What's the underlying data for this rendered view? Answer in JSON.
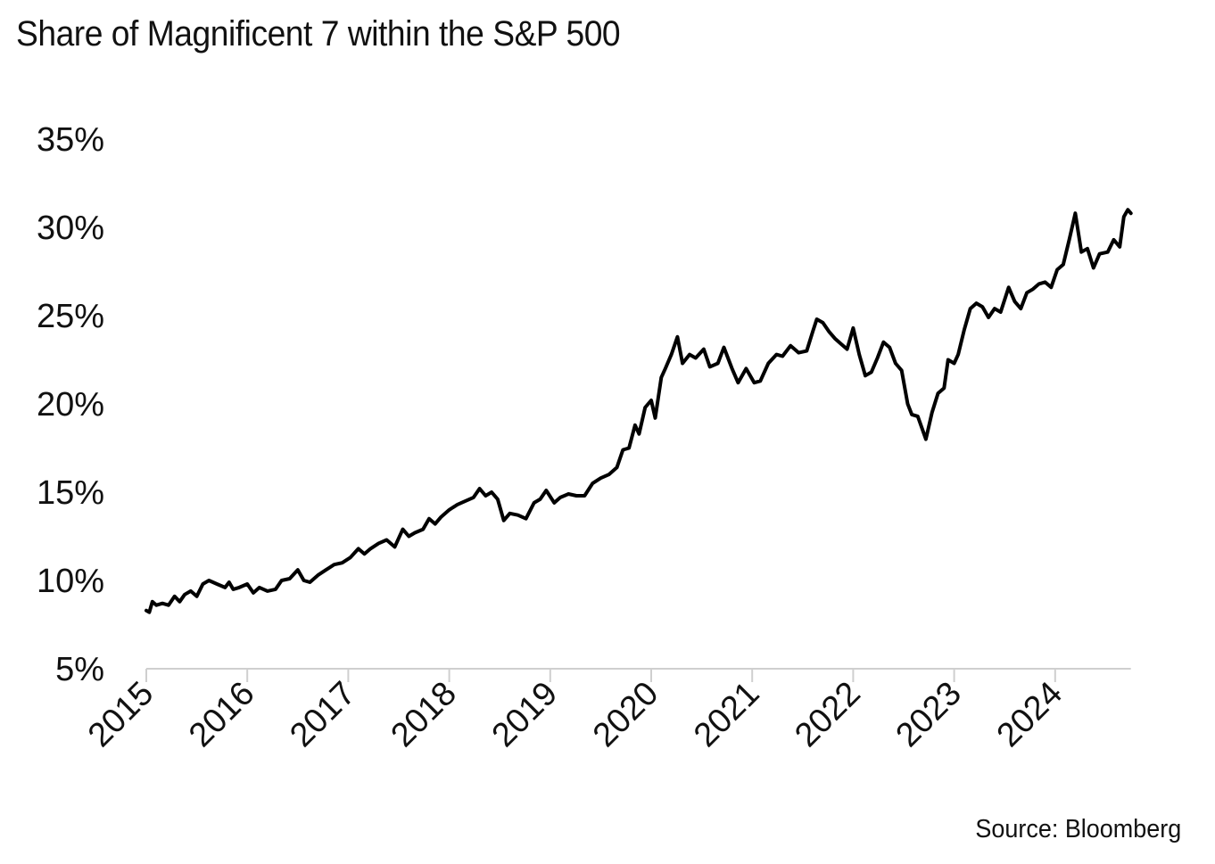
{
  "chart_data": {
    "type": "line",
    "title": "Share of Magnificent 7 within the S&P 500",
    "source": "Source: Bloomberg",
    "xlabel": "",
    "ylabel": "",
    "xlim": [
      2015,
      2024.75
    ],
    "ylim": [
      5,
      35
    ],
    "y_ticks": [
      5,
      10,
      15,
      20,
      25,
      30,
      35
    ],
    "y_tick_labels": [
      "5%",
      "10%",
      "15%",
      "20%",
      "25%",
      "30%",
      "35%"
    ],
    "x_ticks": [
      2015,
      2016,
      2017,
      2018,
      2019,
      2020,
      2021,
      2022,
      2023,
      2024
    ],
    "x_tick_labels": [
      "2015",
      "2016",
      "2017",
      "2018",
      "2019",
      "2020",
      "2021",
      "2022",
      "2023",
      "2024"
    ],
    "grid": false,
    "legend": "none",
    "series": [
      {
        "name": "Magnificent 7 share of S&P 500",
        "color": "#000000",
        "points": [
          [
            2015.0,
            8.3
          ],
          [
            2015.03,
            8.2
          ],
          [
            2015.06,
            8.8
          ],
          [
            2015.1,
            8.6
          ],
          [
            2015.16,
            8.7
          ],
          [
            2015.22,
            8.6
          ],
          [
            2015.28,
            9.1
          ],
          [
            2015.33,
            8.8
          ],
          [
            2015.38,
            9.2
          ],
          [
            2015.44,
            9.4
          ],
          [
            2015.5,
            9.1
          ],
          [
            2015.56,
            9.8
          ],
          [
            2015.62,
            10.0
          ],
          [
            2015.7,
            9.8
          ],
          [
            2015.78,
            9.6
          ],
          [
            2015.82,
            9.9
          ],
          [
            2015.86,
            9.5
          ],
          [
            2015.92,
            9.6
          ],
          [
            2016.0,
            9.8
          ],
          [
            2016.06,
            9.3
          ],
          [
            2016.12,
            9.6
          ],
          [
            2016.2,
            9.4
          ],
          [
            2016.28,
            9.5
          ],
          [
            2016.34,
            10.0
          ],
          [
            2016.42,
            10.1
          ],
          [
            2016.5,
            10.6
          ],
          [
            2016.56,
            10.0
          ],
          [
            2016.62,
            9.9
          ],
          [
            2016.7,
            10.3
          ],
          [
            2016.78,
            10.6
          ],
          [
            2016.86,
            10.9
          ],
          [
            2016.94,
            11.0
          ],
          [
            2017.02,
            11.3
          ],
          [
            2017.1,
            11.8
          ],
          [
            2017.16,
            11.5
          ],
          [
            2017.22,
            11.8
          ],
          [
            2017.3,
            12.1
          ],
          [
            2017.38,
            12.3
          ],
          [
            2017.46,
            11.9
          ],
          [
            2017.54,
            12.9
          ],
          [
            2017.6,
            12.5
          ],
          [
            2017.66,
            12.7
          ],
          [
            2017.74,
            12.9
          ],
          [
            2017.8,
            13.5
          ],
          [
            2017.86,
            13.2
          ],
          [
            2017.92,
            13.6
          ],
          [
            2018.0,
            14.0
          ],
          [
            2018.08,
            14.3
          ],
          [
            2018.16,
            14.5
          ],
          [
            2018.24,
            14.7
          ],
          [
            2018.3,
            15.2
          ],
          [
            2018.36,
            14.8
          ],
          [
            2018.42,
            15.0
          ],
          [
            2018.48,
            14.6
          ],
          [
            2018.54,
            13.4
          ],
          [
            2018.6,
            13.8
          ],
          [
            2018.68,
            13.7
          ],
          [
            2018.76,
            13.5
          ],
          [
            2018.84,
            14.4
          ],
          [
            2018.9,
            14.6
          ],
          [
            2018.96,
            15.1
          ],
          [
            2019.04,
            14.4
          ],
          [
            2019.1,
            14.7
          ],
          [
            2019.18,
            14.9
          ],
          [
            2019.26,
            14.8
          ],
          [
            2019.34,
            14.8
          ],
          [
            2019.42,
            15.5
          ],
          [
            2019.5,
            15.8
          ],
          [
            2019.58,
            16.0
          ],
          [
            2019.66,
            16.4
          ],
          [
            2019.72,
            17.4
          ],
          [
            2019.78,
            17.5
          ],
          [
            2019.84,
            18.8
          ],
          [
            2019.88,
            18.3
          ],
          [
            2019.94,
            19.8
          ],
          [
            2020.0,
            20.2
          ],
          [
            2020.04,
            19.2
          ],
          [
            2020.1,
            21.5
          ],
          [
            2020.14,
            22.0
          ],
          [
            2020.2,
            22.8
          ],
          [
            2020.26,
            23.8
          ],
          [
            2020.31,
            22.3
          ],
          [
            2020.38,
            22.8
          ],
          [
            2020.44,
            22.6
          ],
          [
            2020.52,
            23.1
          ],
          [
            2020.58,
            22.1
          ],
          [
            2020.66,
            22.3
          ],
          [
            2020.72,
            23.2
          ],
          [
            2020.8,
            22.0
          ],
          [
            2020.86,
            21.2
          ],
          [
            2020.94,
            22.0
          ],
          [
            2021.02,
            21.2
          ],
          [
            2021.08,
            21.3
          ],
          [
            2021.16,
            22.3
          ],
          [
            2021.24,
            22.8
          ],
          [
            2021.3,
            22.7
          ],
          [
            2021.38,
            23.3
          ],
          [
            2021.46,
            22.9
          ],
          [
            2021.54,
            23.0
          ],
          [
            2021.6,
            24.1
          ],
          [
            2021.64,
            24.8
          ],
          [
            2021.7,
            24.6
          ],
          [
            2021.76,
            24.1
          ],
          [
            2021.82,
            23.7
          ],
          [
            2021.88,
            23.4
          ],
          [
            2021.94,
            23.1
          ],
          [
            2022.0,
            24.3
          ],
          [
            2022.06,
            22.8
          ],
          [
            2022.12,
            21.6
          ],
          [
            2022.18,
            21.8
          ],
          [
            2022.24,
            22.6
          ],
          [
            2022.3,
            23.5
          ],
          [
            2022.36,
            23.2
          ],
          [
            2022.42,
            22.3
          ],
          [
            2022.48,
            21.9
          ],
          [
            2022.54,
            20.0
          ],
          [
            2022.58,
            19.4
          ],
          [
            2022.64,
            19.3
          ],
          [
            2022.72,
            18.0
          ],
          [
            2022.78,
            19.5
          ],
          [
            2022.84,
            20.6
          ],
          [
            2022.9,
            20.9
          ],
          [
            2022.94,
            22.5
          ],
          [
            2023.0,
            22.3
          ],
          [
            2023.04,
            22.8
          ],
          [
            2023.1,
            24.2
          ],
          [
            2023.16,
            25.4
          ],
          [
            2023.22,
            25.7
          ],
          [
            2023.28,
            25.5
          ],
          [
            2023.34,
            24.9
          ],
          [
            2023.4,
            25.4
          ],
          [
            2023.46,
            25.2
          ],
          [
            2023.54,
            26.6
          ],
          [
            2023.6,
            25.8
          ],
          [
            2023.66,
            25.4
          ],
          [
            2023.72,
            26.3
          ],
          [
            2023.78,
            26.5
          ],
          [
            2023.84,
            26.8
          ],
          [
            2023.9,
            26.9
          ],
          [
            2023.96,
            26.6
          ],
          [
            2024.02,
            27.6
          ],
          [
            2024.08,
            27.9
          ],
          [
            2024.14,
            29.3
          ],
          [
            2024.2,
            30.8
          ],
          [
            2024.26,
            28.6
          ],
          [
            2024.32,
            28.8
          ],
          [
            2024.38,
            27.7
          ],
          [
            2024.44,
            28.5
          ],
          [
            2024.52,
            28.6
          ],
          [
            2024.58,
            29.3
          ],
          [
            2024.64,
            28.9
          ],
          [
            2024.68,
            30.6
          ],
          [
            2024.72,
            31.0
          ],
          [
            2024.75,
            30.8
          ]
        ]
      }
    ]
  }
}
